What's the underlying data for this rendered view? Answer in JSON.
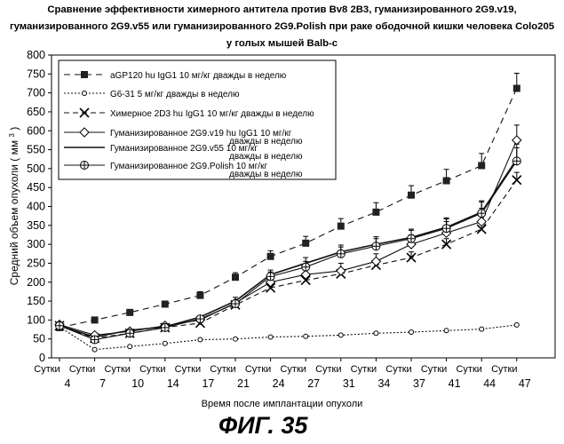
{
  "chart_data": {
    "type": "line",
    "title": "Сравнение эффективности химерного антитела против Bv8 2B3, гуманизированного 2G9.v19, гуманизированного 2G9.v55 или гуманизированного 2G9.Polish при раке ободочной кишки человека Colo205 у голых мышей Balb-c",
    "xlabel": "Время после имплантации опухоли",
    "ylabel": "Средний объем опухоли",
    "ylabel_unit": "( мм",
    "ylabel_unit_sup": "3",
    "ylabel_unit_close": ")",
    "ylim": [
      0,
      800
    ],
    "yticks": [
      0,
      50,
      100,
      150,
      200,
      250,
      300,
      350,
      400,
      450,
      500,
      550,
      600,
      650,
      700,
      750,
      800
    ],
    "x": [
      4,
      7,
      10,
      14,
      17,
      21,
      24,
      27,
      31,
      34,
      37,
      41,
      44,
      47
    ],
    "x_tick_prefix": "Сутки",
    "x_tick_values": [
      "4",
      "7",
      "10",
      "14",
      "17",
      "21",
      "24",
      "27",
      "31",
      "34",
      "37",
      "41",
      "44",
      "47"
    ],
    "series": [
      {
        "name": "aGP120 hu IgG1 10 мг/кг дважды в неделю",
        "marker": "square",
        "dash": "7,5",
        "values": [
          80,
          100,
          120,
          142,
          165,
          213,
          268,
          303,
          348,
          385,
          430,
          468,
          508,
          712
        ],
        "errors": [
          0,
          0,
          0,
          0,
          10,
          12,
          15,
          18,
          20,
          25,
          25,
          30,
          32,
          40
        ]
      },
      {
        "name": "G6-31 5 мг/кг дважды в неделю",
        "marker": "circle-open",
        "dash": "2,2",
        "values": [
          82,
          22,
          30,
          38,
          48,
          50,
          55,
          57,
          60,
          65,
          68,
          72,
          76,
          87
        ],
        "errors": [
          0,
          0,
          0,
          0,
          0,
          0,
          0,
          0,
          0,
          0,
          0,
          0,
          0,
          0
        ]
      },
      {
        "name": "Химерное 2D3 hu IgG1 10 мг/кг дважды в неделю",
        "marker": "x",
        "dash": "6,4",
        "values": [
          85,
          52,
          65,
          80,
          92,
          140,
          185,
          205,
          222,
          245,
          265,
          300,
          340,
          470
        ],
        "errors": [
          0,
          0,
          0,
          0,
          0,
          0,
          0,
          10,
          12,
          12,
          15,
          15,
          18,
          20
        ]
      },
      {
        "name": "Гуманизированное 2G9.v19 hu IgG1 10 мг/кг дважды в неделю",
        "marker": "diamond",
        "dash": "",
        "values": [
          88,
          60,
          70,
          85,
          100,
          145,
          200,
          220,
          230,
          255,
          300,
          330,
          360,
          575
        ],
        "errors": [
          0,
          0,
          0,
          0,
          0,
          0,
          0,
          15,
          20,
          20,
          25,
          30,
          35,
          40
        ]
      },
      {
        "name": "Гуманизированное 2G9.v55 10 мг/кг дважды в неделю",
        "marker": "none",
        "dash": "",
        "values": [
          85,
          55,
          73,
          82,
          108,
          150,
          220,
          250,
          280,
          300,
          318,
          345,
          385,
          525
        ],
        "errors": [
          0,
          0,
          0,
          0,
          0,
          10,
          12,
          15,
          18,
          20,
          22,
          25,
          30,
          40
        ]
      },
      {
        "name": "Гуманизированное 2G9.Polish 10 мг/кг дважды в неделю",
        "marker": "cross-circle",
        "dash": "",
        "values": [
          85,
          48,
          65,
          80,
          103,
          143,
          215,
          240,
          275,
          295,
          315,
          342,
          382,
          520
        ],
        "errors": [
          0,
          0,
          0,
          0,
          0,
          0,
          12,
          15,
          18,
          20,
          22,
          25,
          30,
          35
        ]
      }
    ],
    "legend_placement": "top-left",
    "legend_entries": [
      {
        "line1": "aGP120 hu IgG1 10 мг/кг дважды в неделю",
        "line2": ""
      },
      {
        "line1": "G6-31 5 мг/кг дважды в неделю",
        "line2": ""
      },
      {
        "line1": "Химерное 2D3 hu IgG1 10 мг/кг дважды в неделю",
        "line2": ""
      },
      {
        "line1": "Гуманизированное 2G9.v19 hu IgG1 10 мг/кг",
        "line2": "дважды в неделю"
      },
      {
        "line1": "Гуманизированное 2G9.v55 10 мг/кг",
        "line2": "дважды в неделю"
      },
      {
        "line1": "Гуманизированное 2G9.Polish 10 мг/кг",
        "line2": "дважды в неделю"
      }
    ]
  },
  "figure_label": "ФИГ. 35"
}
